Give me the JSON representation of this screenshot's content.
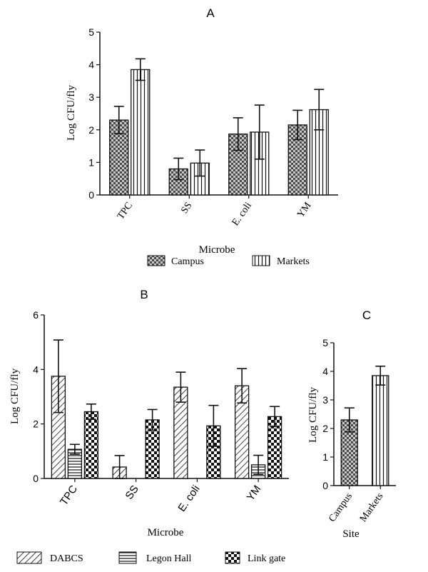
{
  "colors": {
    "ink": "#111111",
    "bar_fill": "#ffffff"
  },
  "chart_data": [
    {
      "panel": "A",
      "type": "bar",
      "xlabel": "Microbe",
      "ylabel": "Log CFU/fly",
      "ylim": [
        0,
        5
      ],
      "yticks": [
        0,
        1,
        2,
        3,
        4,
        5
      ],
      "categories": [
        "TPC",
        "SS",
        "E. coli",
        "YM"
      ],
      "legend_position": "bottom",
      "series": [
        {
          "name": "Campus",
          "pattern": "checker",
          "values": [
            2.3,
            0.8,
            1.87,
            2.15
          ],
          "errors": [
            0.42,
            0.33,
            0.5,
            0.45
          ]
        },
        {
          "name": "Markets",
          "pattern": "vertical",
          "values": [
            3.85,
            0.98,
            1.93,
            2.62
          ],
          "errors": [
            0.33,
            0.4,
            0.83,
            0.62
          ]
        }
      ]
    },
    {
      "panel": "B",
      "type": "bar",
      "xlabel": "Microbe",
      "ylabel": "Log CFU/fly",
      "ylim": [
        0,
        6
      ],
      "yticks": [
        0,
        2,
        4,
        6
      ],
      "categories": [
        "TPC",
        "SS",
        "E. coli",
        "YM"
      ],
      "legend_position": "bottom",
      "series": [
        {
          "name": "DABCS",
          "pattern": "diagonal",
          "values": [
            3.75,
            0.42,
            3.35,
            3.4
          ],
          "errors": [
            1.33,
            0.42,
            0.55,
            0.63
          ]
        },
        {
          "name": "Legon Hall",
          "pattern": "horizontal",
          "values": [
            1.07,
            0,
            0,
            0.5
          ],
          "errors": [
            0.18,
            0,
            0,
            0.35
          ]
        },
        {
          "name": "Link gate",
          "pattern": "bigcheck",
          "values": [
            2.45,
            2.15,
            1.93,
            2.27
          ],
          "errors": [
            0.28,
            0.38,
            0.75,
            0.37
          ]
        }
      ]
    },
    {
      "panel": "C",
      "type": "bar",
      "xlabel": "Site",
      "ylabel": "Log CFU/fly",
      "ylim": [
        0,
        5
      ],
      "yticks": [
        0,
        1,
        2,
        3,
        4,
        5
      ],
      "categories": [
        "Campus",
        "Markets"
      ],
      "patterns": [
        "checker",
        "vertical"
      ],
      "values": [
        2.3,
        3.85
      ],
      "errors": [
        0.42,
        0.33
      ]
    }
  ]
}
